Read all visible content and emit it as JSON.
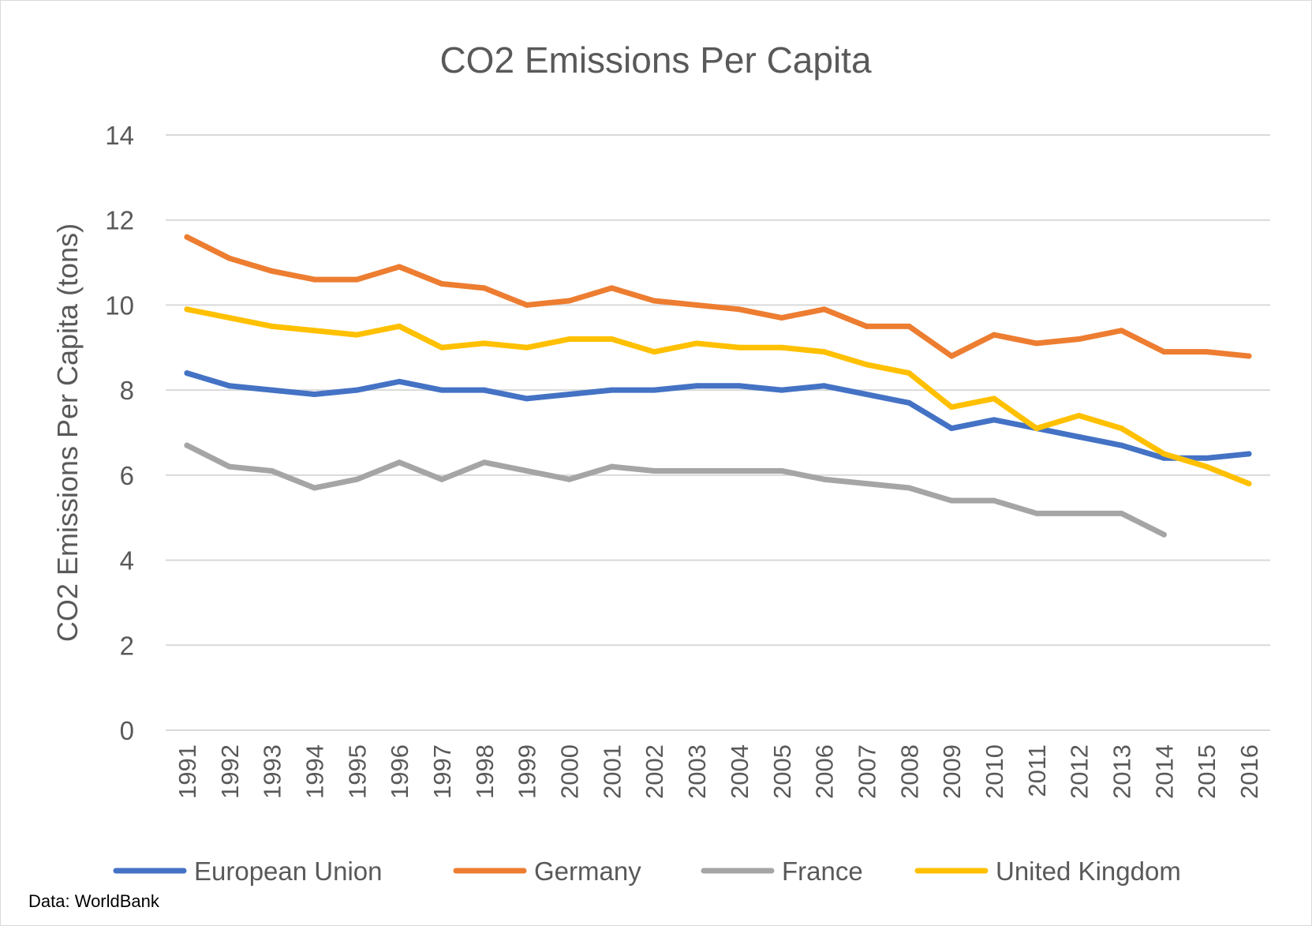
{
  "chart_data": {
    "type": "line",
    "title": "CO2 Emissions Per Capita",
    "xlabel": "",
    "ylabel": "CO2 Emissions Per Capita (tons)",
    "ylim": [
      0,
      14
    ],
    "yticks": [
      "0",
      "2",
      "4",
      "6",
      "8",
      "10",
      "12",
      "14"
    ],
    "ytick_values": [
      0,
      2,
      4,
      6,
      8,
      10,
      12,
      14
    ],
    "categories": [
      "1991",
      "1992",
      "1993",
      "1994",
      "1995",
      "1996",
      "1997",
      "1998",
      "1999",
      "2000",
      "2001",
      "2002",
      "2003",
      "2004",
      "2005",
      "2006",
      "2007",
      "2008",
      "2009",
      "2010",
      "2011",
      "2012",
      "2013",
      "2014",
      "2015",
      "2016"
    ],
    "grid": true,
    "legend_position": "bottom",
    "series": [
      {
        "name": "European Union",
        "color": "#4472c4",
        "values": [
          8.4,
          8.1,
          8.0,
          7.9,
          8.0,
          8.2,
          8.0,
          8.0,
          7.8,
          7.9,
          8.0,
          8.0,
          8.1,
          8.1,
          8.0,
          8.1,
          7.9,
          7.7,
          7.1,
          7.3,
          7.1,
          6.9,
          6.7,
          6.4,
          6.4,
          6.5
        ]
      },
      {
        "name": "Germany",
        "color": "#ed7d31",
        "values": [
          11.6,
          11.1,
          10.8,
          10.6,
          10.6,
          10.9,
          10.5,
          10.4,
          10.0,
          10.1,
          10.4,
          10.1,
          10.0,
          9.9,
          9.7,
          9.9,
          9.5,
          9.5,
          8.8,
          9.3,
          9.1,
          9.2,
          9.4,
          8.9,
          8.9,
          8.8
        ]
      },
      {
        "name": "France",
        "color": "#a5a5a5",
        "values": [
          6.7,
          6.2,
          6.1,
          5.7,
          5.9,
          6.3,
          5.9,
          6.3,
          6.1,
          5.9,
          6.2,
          6.1,
          6.1,
          6.1,
          6.1,
          5.9,
          5.8,
          5.7,
          5.4,
          5.4,
          5.1,
          5.1,
          5.1,
          4.6,
          null,
          null
        ]
      },
      {
        "name": "United Kingdom",
        "color": "#ffc000",
        "values": [
          9.9,
          9.7,
          9.5,
          9.4,
          9.3,
          9.5,
          9.0,
          9.1,
          9.0,
          9.2,
          9.2,
          8.9,
          9.1,
          9.0,
          9.0,
          8.9,
          8.6,
          8.4,
          7.6,
          7.8,
          7.1,
          7.4,
          7.1,
          6.5,
          6.2,
          5.8
        ]
      }
    ],
    "source_note": "Data: WorldBank"
  },
  "colors": {
    "gridline": "#d9d9d9",
    "text": "#595959",
    "frame": "#d9d9d9"
  }
}
